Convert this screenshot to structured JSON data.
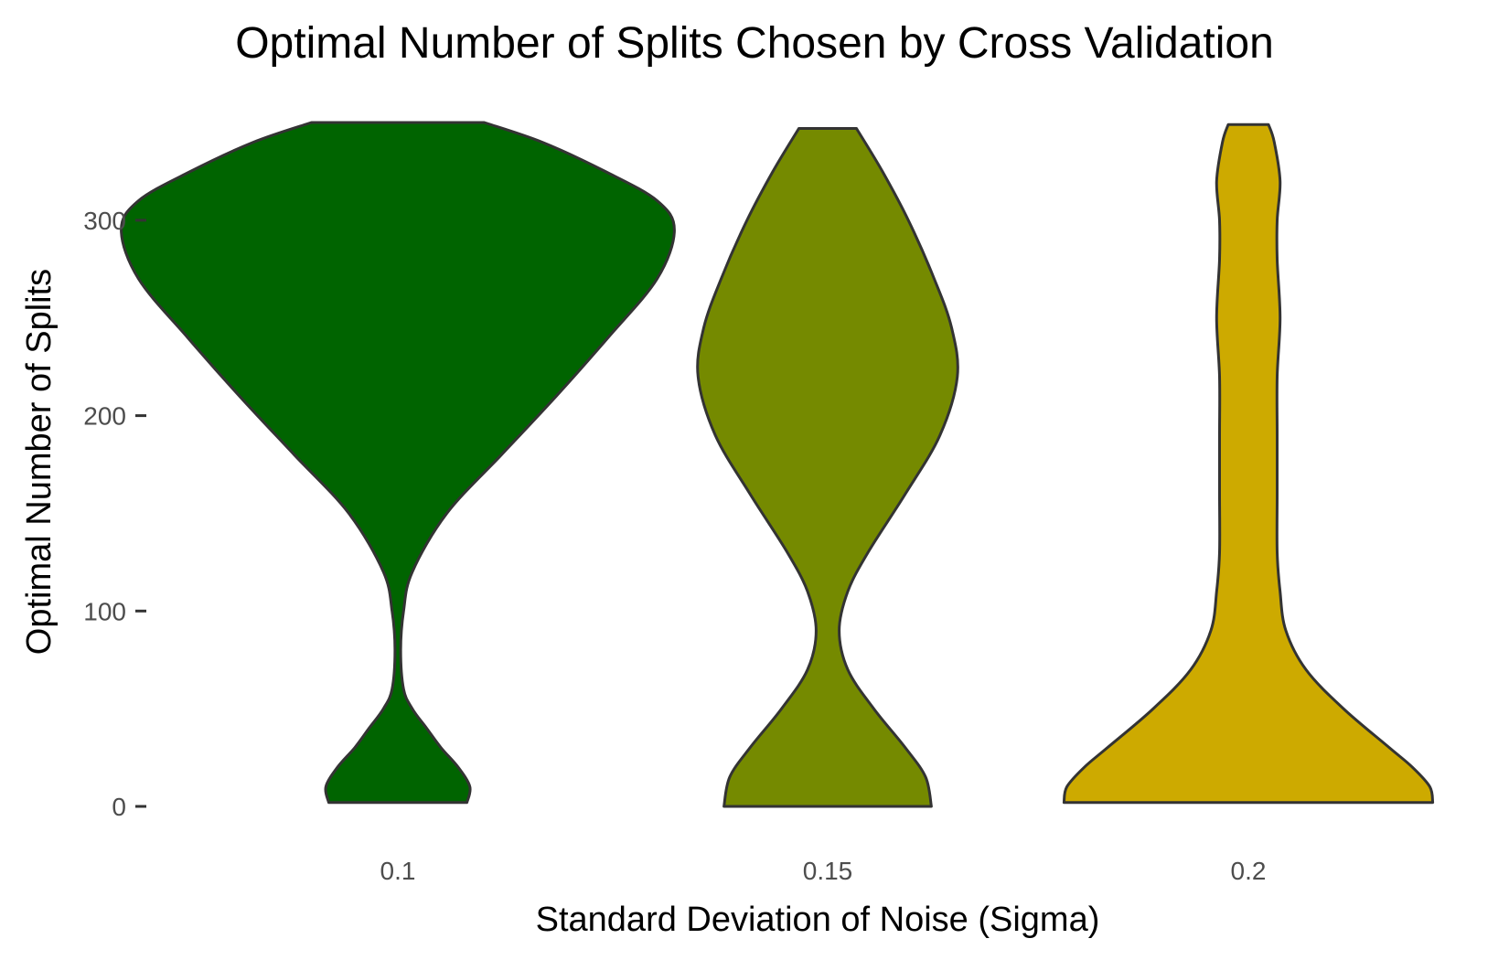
{
  "chart_data": {
    "type": "violin",
    "title": "Optimal Number of Splits Chosen by Cross Validation",
    "xlabel": "Standard Deviation of Noise (Sigma)",
    "ylabel": "Optimal Number of Splits",
    "ylim": [
      -15,
      365
    ],
    "yticks": [
      0,
      100,
      200,
      300
    ],
    "ytick_labels": [
      "0",
      "100",
      "200",
      "300"
    ],
    "grid": false,
    "legend": "none",
    "categories": [
      "0.1",
      "0.15",
      "0.2"
    ],
    "series": [
      {
        "category": "0.1",
        "color": "#006400",
        "y_min": 2,
        "y_max": 350,
        "density": [
          [
            2,
            0.24
          ],
          [
            10,
            0.25
          ],
          [
            20,
            0.21
          ],
          [
            30,
            0.15
          ],
          [
            40,
            0.1
          ],
          [
            50,
            0.05
          ],
          [
            60,
            0.02
          ],
          [
            80,
            0.01
          ],
          [
            100,
            0.02
          ],
          [
            120,
            0.05
          ],
          [
            150,
            0.17
          ],
          [
            180,
            0.36
          ],
          [
            210,
            0.55
          ],
          [
            240,
            0.73
          ],
          [
            270,
            0.9
          ],
          [
            295,
            0.96
          ],
          [
            310,
            0.9
          ],
          [
            325,
            0.72
          ],
          [
            340,
            0.5
          ],
          [
            350,
            0.3
          ]
        ]
      },
      {
        "category": "0.15",
        "color": "#758a00",
        "y_min": 0,
        "y_max": 347,
        "density": [
          [
            0,
            0.36
          ],
          [
            15,
            0.34
          ],
          [
            30,
            0.27
          ],
          [
            50,
            0.16
          ],
          [
            70,
            0.07
          ],
          [
            90,
            0.04
          ],
          [
            110,
            0.07
          ],
          [
            130,
            0.14
          ],
          [
            160,
            0.27
          ],
          [
            190,
            0.39
          ],
          [
            220,
            0.45
          ],
          [
            245,
            0.43
          ],
          [
            270,
            0.37
          ],
          [
            300,
            0.28
          ],
          [
            325,
            0.19
          ],
          [
            347,
            0.1
          ]
        ]
      },
      {
        "category": "0.2",
        "color": "#cdaa00",
        "y_min": 2,
        "y_max": 349,
        "density": [
          [
            2,
            0.64
          ],
          [
            10,
            0.63
          ],
          [
            20,
            0.57
          ],
          [
            30,
            0.49
          ],
          [
            50,
            0.33
          ],
          [
            70,
            0.2
          ],
          [
            90,
            0.13
          ],
          [
            110,
            0.11
          ],
          [
            130,
            0.1
          ],
          [
            160,
            0.1
          ],
          [
            190,
            0.1
          ],
          [
            220,
            0.1
          ],
          [
            250,
            0.11
          ],
          [
            280,
            0.1
          ],
          [
            300,
            0.1
          ],
          [
            320,
            0.11
          ],
          [
            340,
            0.09
          ],
          [
            349,
            0.07
          ]
        ]
      }
    ]
  }
}
